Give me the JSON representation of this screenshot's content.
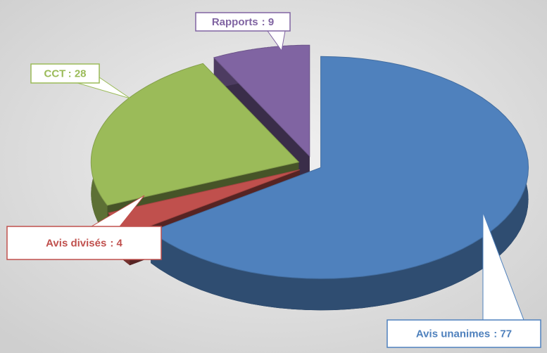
{
  "chart_data": {
    "type": "pie",
    "categories": [
      "Avis unanimes",
      "Avis divisés",
      "CCT",
      "Rapports"
    ],
    "values": [
      77,
      4,
      28,
      9
    ],
    "value_labels": [
      ": 77",
      ": 4",
      ": 28",
      ": 9"
    ],
    "colors": [
      "#4f81bd",
      "#c0504d",
      "#9bbb59",
      "#8064a2"
    ]
  }
}
